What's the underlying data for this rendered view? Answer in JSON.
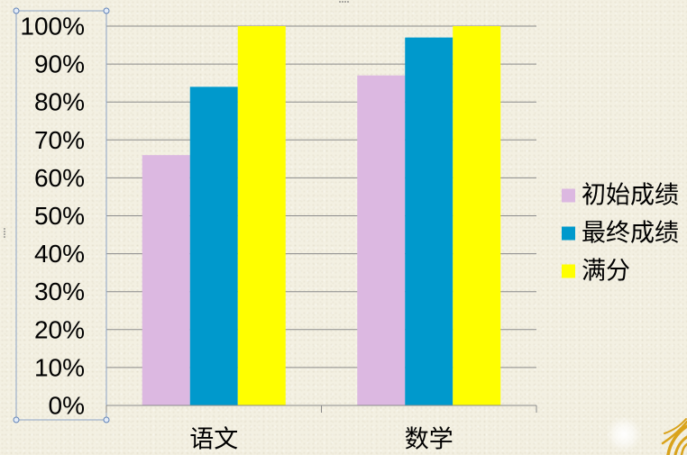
{
  "chart_data": {
    "type": "bar",
    "categories": [
      "语文",
      "数学"
    ],
    "series": [
      {
        "name": "初始成绩",
        "values": [
          66,
          87
        ],
        "color": "#dcb8e1"
      },
      {
        "name": "最终成绩",
        "values": [
          84,
          97
        ],
        "color": "#0099cc"
      },
      {
        "name": "满分",
        "values": [
          100,
          100
        ],
        "color": "#ffff00"
      }
    ],
    "ytick_labels": [
      "0%",
      "10%",
      "20%",
      "30%",
      "40%",
      "50%",
      "60%",
      "70%",
      "80%",
      "90%",
      "100%"
    ],
    "ylim": [
      0,
      100
    ],
    "grid": true,
    "legend_position": "right",
    "y_axis_selected": true
  },
  "colors": {
    "background": "#f3f0e2",
    "gridline": "#8a8a8a",
    "axis": "#8a8a8a",
    "text": "#000000",
    "selection": "#8ea4c6",
    "handle_fill": "#e4ecf7",
    "handle_stroke": "#5f82b8",
    "logo": "#d9a31c"
  },
  "icons": {
    "logo": "golden-wing-logo"
  }
}
